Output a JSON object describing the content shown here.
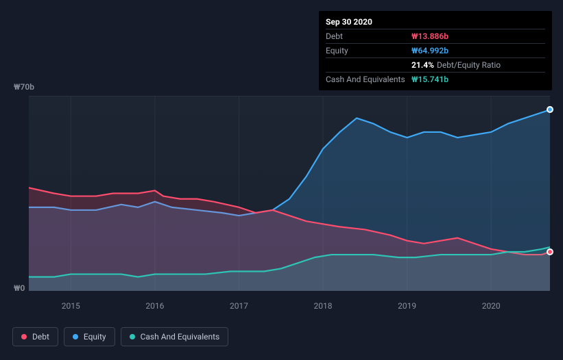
{
  "chart": {
    "type": "area",
    "background_color": "#1d2533",
    "grid_color": "#2a3040",
    "text_color": "#8a8f99",
    "ylim": [
      0,
      70
    ],
    "y_ticks": [
      {
        "value": 70,
        "label": "₩70b"
      },
      {
        "value": 0,
        "label": "₩0"
      }
    ],
    "x_ticks": [
      "2015",
      "2016",
      "2017",
      "2018",
      "2019",
      "2020"
    ],
    "x_domain_years": [
      2014.5,
      2020.7
    ],
    "series": [
      {
        "name": "Equity",
        "color": "#3fa9f5",
        "fill": "rgba(63,169,245,0.22)",
        "points": [
          [
            2014.5,
            30
          ],
          [
            2014.8,
            30
          ],
          [
            2015.0,
            29
          ],
          [
            2015.3,
            29
          ],
          [
            2015.6,
            31
          ],
          [
            2015.8,
            30
          ],
          [
            2016.0,
            32
          ],
          [
            2016.2,
            30
          ],
          [
            2016.5,
            29
          ],
          [
            2016.8,
            28
          ],
          [
            2017.0,
            27
          ],
          [
            2017.2,
            28
          ],
          [
            2017.4,
            29
          ],
          [
            2017.6,
            33
          ],
          [
            2017.8,
            41
          ],
          [
            2018.0,
            51
          ],
          [
            2018.2,
            57
          ],
          [
            2018.4,
            62
          ],
          [
            2018.6,
            60
          ],
          [
            2018.8,
            57
          ],
          [
            2019.0,
            55
          ],
          [
            2019.2,
            57
          ],
          [
            2019.4,
            57
          ],
          [
            2019.6,
            55
          ],
          [
            2019.8,
            56
          ],
          [
            2020.0,
            57
          ],
          [
            2020.2,
            60
          ],
          [
            2020.4,
            62
          ],
          [
            2020.6,
            64
          ],
          [
            2020.7,
            65
          ]
        ]
      },
      {
        "name": "Debt",
        "color": "#ff4d6d",
        "fill": "rgba(255,77,109,0.20)",
        "points": [
          [
            2014.5,
            37
          ],
          [
            2014.8,
            35
          ],
          [
            2015.0,
            34
          ],
          [
            2015.3,
            34
          ],
          [
            2015.5,
            35
          ],
          [
            2015.8,
            35
          ],
          [
            2016.0,
            36
          ],
          [
            2016.1,
            34
          ],
          [
            2016.3,
            33
          ],
          [
            2016.5,
            33
          ],
          [
            2016.7,
            32
          ],
          [
            2017.0,
            30
          ],
          [
            2017.2,
            28
          ],
          [
            2017.4,
            29
          ],
          [
            2017.6,
            27
          ],
          [
            2017.8,
            25
          ],
          [
            2018.0,
            24
          ],
          [
            2018.2,
            23
          ],
          [
            2018.5,
            22
          ],
          [
            2018.8,
            20
          ],
          [
            2019.0,
            18
          ],
          [
            2019.2,
            17
          ],
          [
            2019.4,
            18
          ],
          [
            2019.6,
            19
          ],
          [
            2019.8,
            17
          ],
          [
            2020.0,
            15
          ],
          [
            2020.2,
            14
          ],
          [
            2020.4,
            13
          ],
          [
            2020.6,
            13
          ],
          [
            2020.7,
            14
          ]
        ]
      },
      {
        "name": "Cash And Equivalents",
        "color": "#2ec4b6",
        "fill": "rgba(46,196,182,0.18)",
        "points": [
          [
            2014.5,
            5
          ],
          [
            2014.8,
            5
          ],
          [
            2015.0,
            6
          ],
          [
            2015.3,
            6
          ],
          [
            2015.6,
            6
          ],
          [
            2015.8,
            5
          ],
          [
            2016.0,
            6
          ],
          [
            2016.3,
            6
          ],
          [
            2016.6,
            6
          ],
          [
            2016.9,
            7
          ],
          [
            2017.1,
            7
          ],
          [
            2017.3,
            7
          ],
          [
            2017.5,
            8
          ],
          [
            2017.7,
            10
          ],
          [
            2017.9,
            12
          ],
          [
            2018.1,
            13
          ],
          [
            2018.3,
            13
          ],
          [
            2018.6,
            13
          ],
          [
            2018.9,
            12
          ],
          [
            2019.1,
            12
          ],
          [
            2019.4,
            13
          ],
          [
            2019.7,
            13
          ],
          [
            2020.0,
            13
          ],
          [
            2020.2,
            14
          ],
          [
            2020.4,
            14
          ],
          [
            2020.6,
            15
          ],
          [
            2020.7,
            15.7
          ]
        ]
      }
    ],
    "legend": [
      {
        "label": "Debt",
        "color": "#ff4d6d"
      },
      {
        "label": "Equity",
        "color": "#3fa9f5"
      },
      {
        "label": "Cash And Equivalents",
        "color": "#2ec4b6"
      }
    ]
  },
  "tooltip": {
    "date": "Sep 30 2020",
    "debt_label": "Debt",
    "debt_value": "₩13.886b",
    "equity_label": "Equity",
    "equity_value": "₩64.992b",
    "ratio_pct": "21.4%",
    "ratio_label": "Debt/Equity Ratio",
    "cash_label": "Cash And Equivalents",
    "cash_value": "₩15.741b"
  }
}
